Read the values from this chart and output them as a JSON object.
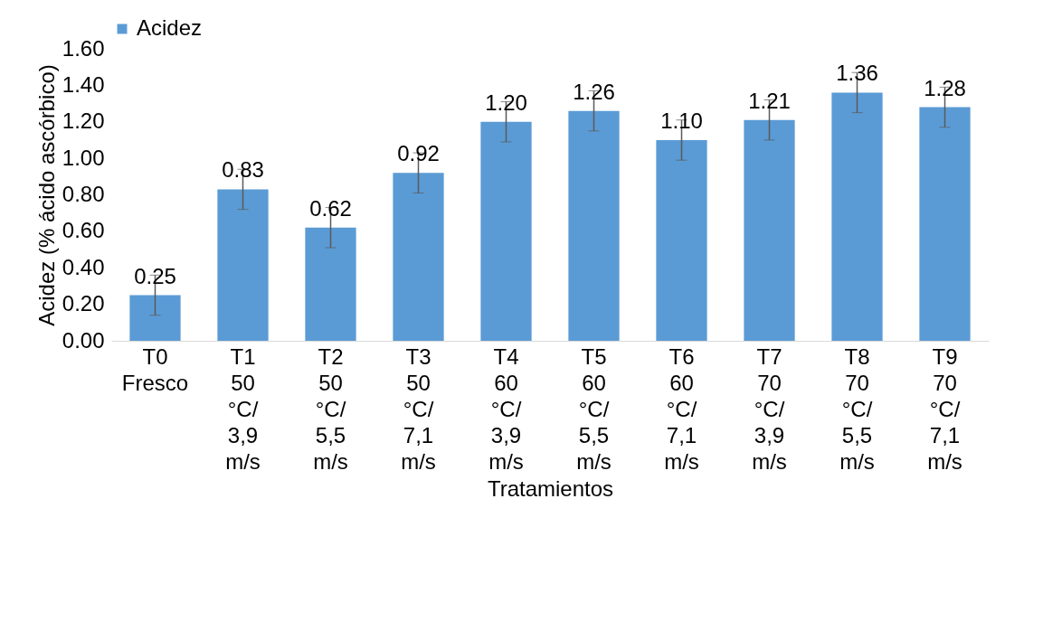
{
  "chart_data": {
    "type": "bar",
    "xlabel": "Tratamientos",
    "ylabel": "Acidez (% ácido ascórbico)",
    "categories": [
      "T0 Fresco",
      "T1 50 °C/ 3,9 m/s",
      "T2 50 °C/ 5,5 m/s",
      "T3 50 °C/ 7,1 m/s",
      "T4 60 °C/ 3,9 m/s",
      "T5 60 °C/ 5,5 m/s",
      "T6 60 °C/ 7,1 m/s",
      "T7 70 °C/ 3,9 m/s",
      "T8 70 °C/ 5,5 m/s",
      "T9 70 °C/ 7,1 m/s"
    ],
    "series": [
      {
        "name": "Acidez",
        "color": "#5b9bd5",
        "values": [
          0.25,
          0.83,
          0.62,
          0.92,
          1.2,
          1.26,
          1.1,
          1.21,
          1.36,
          1.28
        ],
        "errors": [
          0.11,
          0.11,
          0.11,
          0.11,
          0.11,
          0.11,
          0.11,
          0.11,
          0.11,
          0.11
        ],
        "value_labels": [
          "0.25",
          "0.83",
          "0.62",
          "0.92",
          "1.20",
          "1.26",
          "1.10",
          "1.21",
          "1.36",
          "1.28"
        ]
      }
    ],
    "ylim": [
      0,
      1.6
    ],
    "yticks": [
      {
        "value": 0,
        "label": "0.00"
      },
      {
        "value": 0.2,
        "label": "0.20"
      },
      {
        "value": 0.4,
        "label": "0.40"
      },
      {
        "value": 0.6,
        "label": "0.60"
      },
      {
        "value": 0.8,
        "label": "0.80"
      },
      {
        "value": 1,
        "label": "1.00"
      },
      {
        "value": 1.2,
        "label": "1.20"
      },
      {
        "value": 1.4,
        "label": "1.40"
      },
      {
        "value": 1.6,
        "label": "1.60"
      }
    ],
    "grid": false,
    "legend": "top left"
  }
}
